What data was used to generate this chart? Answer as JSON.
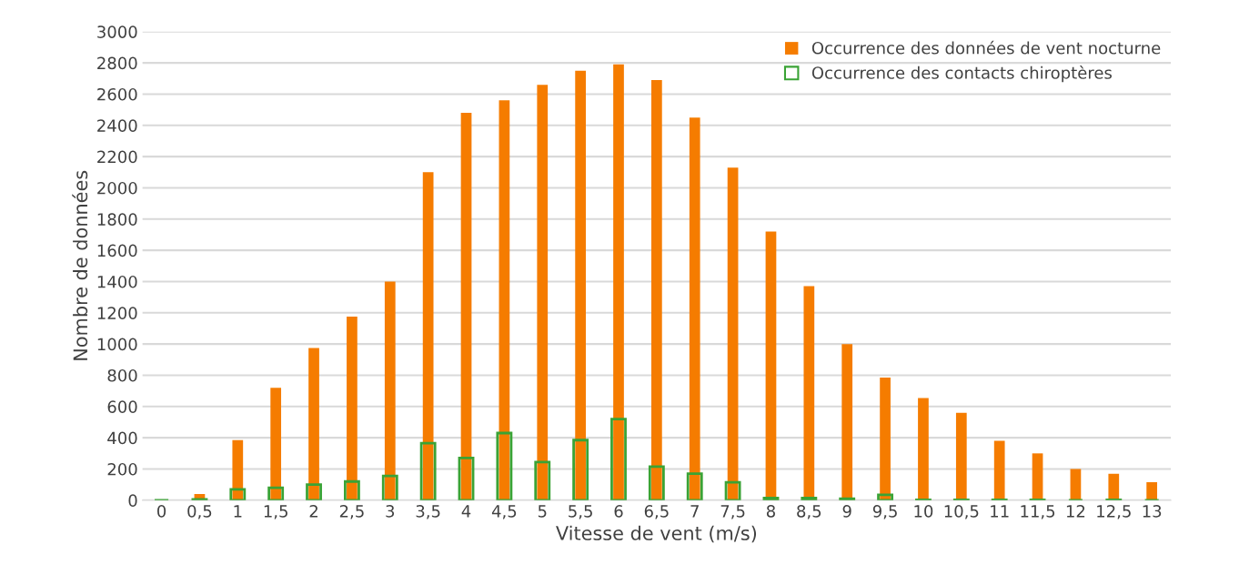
{
  "chart_data": {
    "type": "bar",
    "xlabel": "Vitesse de vent (m/s)",
    "ylabel": "Nombre de données",
    "categories": [
      "0",
      "0,5",
      "1",
      "1,5",
      "2",
      "2,5",
      "3",
      "3,5",
      "4",
      "4,5",
      "5",
      "5,5",
      "6",
      "6,5",
      "7",
      "7,5",
      "8",
      "8,5",
      "9",
      "9,5",
      "10",
      "10,5",
      "11",
      "11,5",
      "12",
      "12,5",
      "13"
    ],
    "series": [
      {
        "name": "Occurrence des données de vent nocturne",
        "color": "#f57c00",
        "values": [
          0,
          40,
          385,
          720,
          975,
          1175,
          1400,
          2100,
          2480,
          2560,
          2660,
          2750,
          2790,
          2690,
          2450,
          2130,
          1720,
          1370,
          1000,
          785,
          655,
          560,
          380,
          300,
          200,
          170,
          115
        ]
      },
      {
        "name": "Occurrence des contacts chiroptères",
        "color": "#3aa335",
        "values": [
          0,
          5,
          70,
          80,
          100,
          120,
          155,
          365,
          270,
          430,
          245,
          385,
          520,
          215,
          170,
          115,
          15,
          15,
          10,
          35,
          3,
          3,
          3,
          3,
          0,
          3,
          0
        ]
      }
    ],
    "ylim": [
      0,
      3000
    ],
    "yticks": [
      0,
      200,
      400,
      600,
      800,
      1000,
      1200,
      1400,
      1600,
      1800,
      2000,
      2200,
      2400,
      2600,
      2800,
      3000
    ],
    "grid": "y",
    "legend": "top right"
  }
}
